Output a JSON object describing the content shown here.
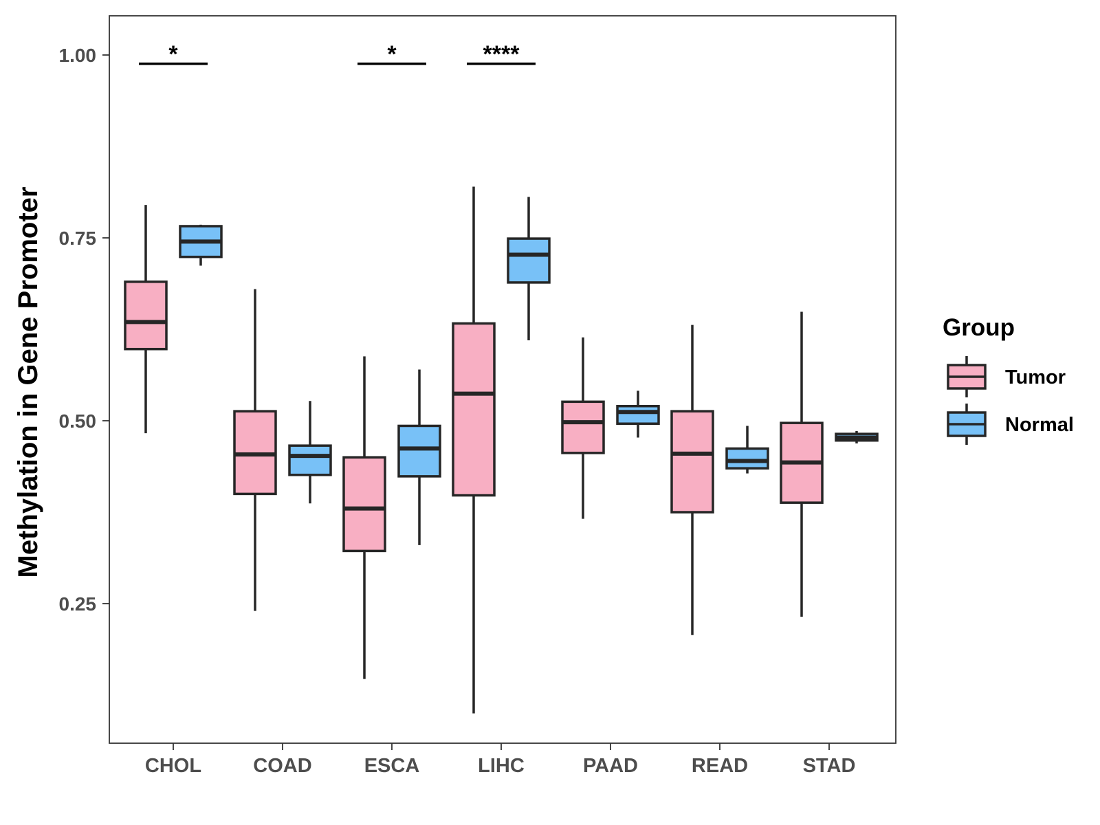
{
  "chart_data": {
    "type": "boxplot",
    "title": "",
    "xlabel": "",
    "ylabel": "Methylation in Gene Promoter",
    "ylim": [
      0.055,
      1.055
    ],
    "yticks": [
      0.25,
      0.5,
      0.75,
      1.0
    ],
    "ytick_labels": [
      "0.25",
      "0.50",
      "0.75",
      "1.00"
    ],
    "categories": [
      "CHOL",
      "COAD",
      "ESCA",
      "LIHC",
      "PAAD",
      "READ",
      "STAD"
    ],
    "series": [
      {
        "name": "Tumor",
        "color": "#F8AFC3",
        "boxes": [
          {
            "category": "CHOL",
            "whisker_low": 0.483,
            "q1": 0.598,
            "median": 0.635,
            "q3": 0.69,
            "whisker_high": 0.795
          },
          {
            "category": "COAD",
            "whisker_low": 0.24,
            "q1": 0.4,
            "median": 0.454,
            "q3": 0.513,
            "whisker_high": 0.68
          },
          {
            "category": "ESCA",
            "whisker_low": 0.147,
            "q1": 0.322,
            "median": 0.38,
            "q3": 0.45,
            "whisker_high": 0.588
          },
          {
            "category": "LIHC",
            "whisker_low": 0.1,
            "q1": 0.398,
            "median": 0.537,
            "q3": 0.633,
            "whisker_high": 0.82
          },
          {
            "category": "PAAD",
            "whisker_low": 0.366,
            "q1": 0.456,
            "median": 0.498,
            "q3": 0.526,
            "whisker_high": 0.614
          },
          {
            "category": "READ",
            "whisker_low": 0.207,
            "q1": 0.375,
            "median": 0.455,
            "q3": 0.513,
            "whisker_high": 0.631
          },
          {
            "category": "STAD",
            "whisker_low": 0.232,
            "q1": 0.388,
            "median": 0.443,
            "q3": 0.497,
            "whisker_high": 0.649
          }
        ]
      },
      {
        "name": "Normal",
        "color": "#78C1F7",
        "boxes": [
          {
            "category": "CHOL",
            "whisker_low": 0.712,
            "q1": 0.724,
            "median": 0.745,
            "q3": 0.766,
            "whisker_high": 0.768
          },
          {
            "category": "COAD",
            "whisker_low": 0.387,
            "q1": 0.426,
            "median": 0.452,
            "q3": 0.466,
            "whisker_high": 0.527
          },
          {
            "category": "ESCA",
            "whisker_low": 0.33,
            "q1": 0.424,
            "median": 0.462,
            "q3": 0.493,
            "whisker_high": 0.57
          },
          {
            "category": "LIHC",
            "whisker_low": 0.61,
            "q1": 0.689,
            "median": 0.727,
            "q3": 0.749,
            "whisker_high": 0.806
          },
          {
            "category": "PAAD",
            "whisker_low": 0.477,
            "q1": 0.496,
            "median": 0.512,
            "q3": 0.52,
            "whisker_high": 0.541
          },
          {
            "category": "READ",
            "whisker_low": 0.428,
            "q1": 0.435,
            "median": 0.445,
            "q3": 0.462,
            "whisker_high": 0.493
          },
          {
            "category": "STAD",
            "whisker_low": 0.469,
            "q1": 0.473,
            "median": 0.477,
            "q3": 0.482,
            "whisker_high": 0.486
          }
        ]
      }
    ],
    "significance": [
      {
        "category": "CHOL",
        "label": "*",
        "y": 0.988
      },
      {
        "category": "ESCA",
        "label": "*",
        "y": 0.988
      },
      {
        "category": "LIHC",
        "label": "****",
        "y": 0.988
      }
    ],
    "legend": {
      "title": "Group",
      "position": "right",
      "entries": [
        "Tumor",
        "Normal"
      ]
    },
    "grid": false
  }
}
